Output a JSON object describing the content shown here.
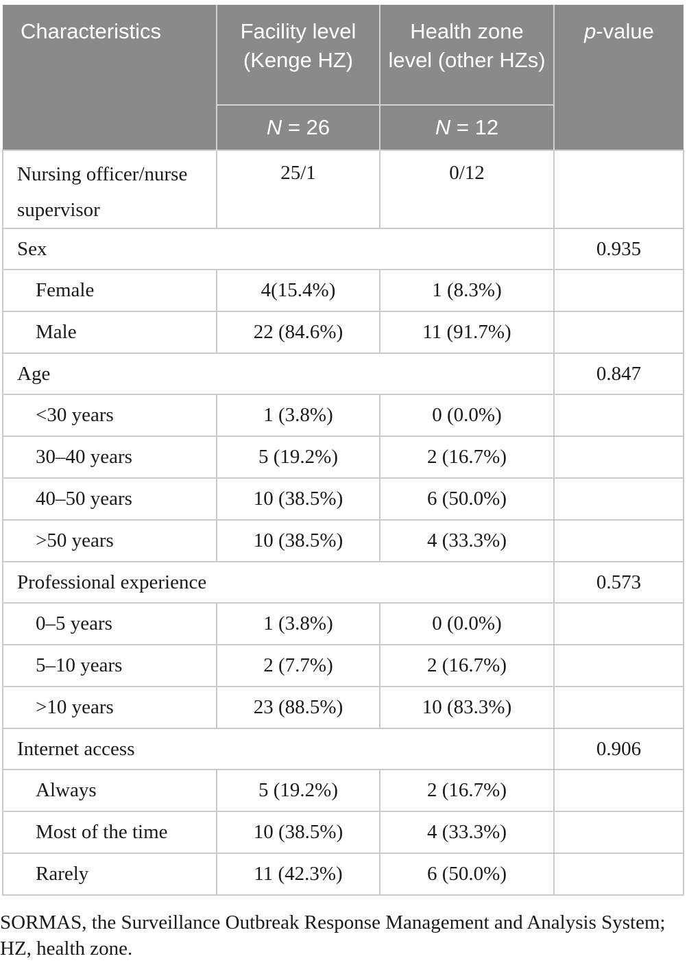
{
  "table": {
    "columns": {
      "characteristics": "Characteristics",
      "facility_label": "Facility level (Kenge HZ)",
      "facility_n": "N = 26",
      "health_zone_label": "Health zone level (other HZs)",
      "health_zone_n": "N = 12",
      "p_value_label": "p-value"
    },
    "rows": [
      {
        "kind": "tall",
        "label": "Nursing officer/nurse supervisor",
        "facility": "25/1",
        "health_zone": "0/12",
        "p_value": ""
      },
      {
        "kind": "category",
        "label": "Sex",
        "p_value": "0.935"
      },
      {
        "kind": "sub",
        "label": "Female",
        "facility": "4(15.4%)",
        "health_zone": "1 (8.3%)",
        "p_value": ""
      },
      {
        "kind": "sub",
        "label": "Male",
        "facility": "22 (84.6%)",
        "health_zone": "11 (91.7%)",
        "p_value": ""
      },
      {
        "kind": "category",
        "label": "Age",
        "p_value": "0.847"
      },
      {
        "kind": "sub",
        "label": "<30 years",
        "facility": "1 (3.8%)",
        "health_zone": "0 (0.0%)",
        "p_value": ""
      },
      {
        "kind": "sub",
        "label": "30–40 years",
        "facility": "5 (19.2%)",
        "health_zone": "2 (16.7%)",
        "p_value": ""
      },
      {
        "kind": "sub",
        "label": "40–50 years",
        "facility": "10 (38.5%)",
        "health_zone": "6 (50.0%)",
        "p_value": ""
      },
      {
        "kind": "sub",
        "label": ">50 years",
        "facility": "10 (38.5%)",
        "health_zone": "4 (33.3%)",
        "p_value": ""
      },
      {
        "kind": "category",
        "label": "Professional experience",
        "p_value": "0.573"
      },
      {
        "kind": "sub",
        "label": "0–5 years",
        "facility": "1 (3.8%)",
        "health_zone": "0 (0.0%)",
        "p_value": ""
      },
      {
        "kind": "sub",
        "label": "5–10 years",
        "facility": "2 (7.7%)",
        "health_zone": "2 (16.7%)",
        "p_value": ""
      },
      {
        "kind": "sub",
        "label": ">10 years",
        "facility": "23 (88.5%)",
        "health_zone": "10 (83.3%)",
        "p_value": ""
      },
      {
        "kind": "category",
        "label": "Internet access",
        "p_value": "0.906"
      },
      {
        "kind": "sub",
        "label": "Always",
        "facility": "5 (19.2%)",
        "health_zone": "2 (16.7%)",
        "p_value": ""
      },
      {
        "kind": "sub",
        "label": "Most of the time",
        "facility": "10 (38.5%)",
        "health_zone": "4 (33.3%)",
        "p_value": ""
      },
      {
        "kind": "sub",
        "label": "Rarely",
        "facility": "11 (42.3%)",
        "health_zone": "6 (50.0%)",
        "p_value": ""
      }
    ]
  },
  "footnote": "SORMAS, the Surveillance Outbreak Response Management and Analysis System; HZ, health zone.",
  "colors": {
    "header_bg": "#8a8a8a",
    "header_text": "#ffffff",
    "body_border": "#c9c9c9",
    "header_border": "#d2d2d2",
    "body_text": "#1a1a1a"
  }
}
